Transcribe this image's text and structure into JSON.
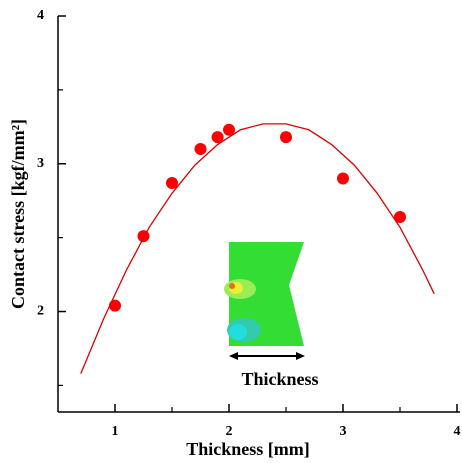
{
  "chart_data": {
    "type": "scatter",
    "xlabel": "Thickness [mm]",
    "ylabel": "Contact stress [kgf/mm²]",
    "annotation": "Thickness",
    "xlim": [
      0.5,
      4.0
    ],
    "xticks": [
      1,
      2,
      3,
      4
    ],
    "xminor": [
      1.5,
      2.5,
      3.5
    ],
    "ylim": [
      1.32,
      4
    ],
    "yticks": [
      2,
      3,
      4
    ],
    "yminor": [
      1.5,
      2.5,
      3.5
    ],
    "series": [
      {
        "kind": "points",
        "color": "#ff0000",
        "x": [
          1,
          1.25,
          1.5,
          1.75,
          1.9,
          2,
          2.5,
          3,
          3.5
        ],
        "values": [
          2.04,
          2.51,
          2.87,
          3.1,
          3.18,
          3.23,
          3.18,
          2.9,
          2.64
        ]
      },
      {
        "kind": "curve",
        "color": "#dd0000",
        "x": [
          0.7,
          0.9,
          1.1,
          1.3,
          1.5,
          1.7,
          1.9,
          2.1,
          2.3,
          2.5,
          2.7,
          2.9,
          3.1,
          3.3,
          3.5,
          3.7,
          3.8
        ],
        "values": [
          1.58,
          1.95,
          2.28,
          2.57,
          2.8,
          2.99,
          3.13,
          3.23,
          3.27,
          3.27,
          3.23,
          3.13,
          2.99,
          2.8,
          2.57,
          2.28,
          2.12
        ]
      }
    ]
  }
}
